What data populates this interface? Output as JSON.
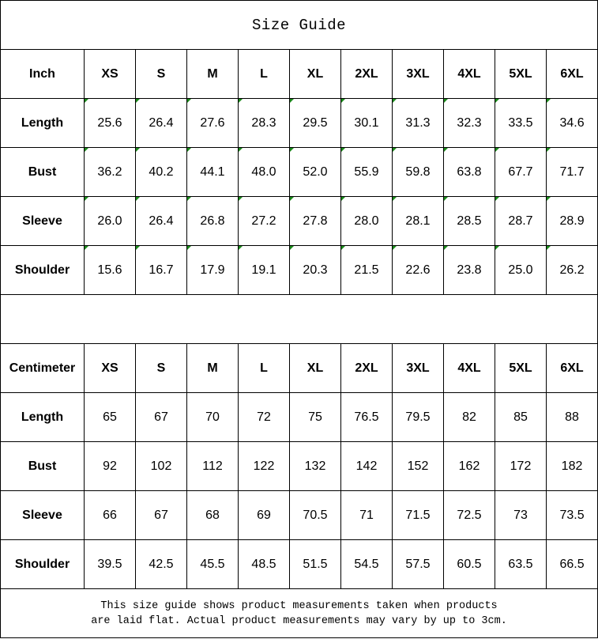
{
  "title": "Size Guide",
  "sizes": [
    "XS",
    "S",
    "M",
    "L",
    "XL",
    "2XL",
    "3XL",
    "4XL",
    "5XL",
    "6XL"
  ],
  "marker_color": "#1a8a1a",
  "inch": {
    "unit_label": "Inch",
    "rows": [
      {
        "label": "Length",
        "values": [
          "25.6",
          "26.4",
          "27.6",
          "28.3",
          "29.5",
          "30.1",
          "31.3",
          "32.3",
          "33.5",
          "34.6"
        ]
      },
      {
        "label": "Bust",
        "values": [
          "36.2",
          "40.2",
          "44.1",
          "48.0",
          "52.0",
          "55.9",
          "59.8",
          "63.8",
          "67.7",
          "71.7"
        ]
      },
      {
        "label": "Sleeve",
        "values": [
          "26.0",
          "26.4",
          "26.8",
          "27.2",
          "27.8",
          "28.0",
          "28.1",
          "28.5",
          "28.7",
          "28.9"
        ]
      },
      {
        "label": "Shoulder",
        "values": [
          "15.6",
          "16.7",
          "17.9",
          "19.1",
          "20.3",
          "21.5",
          "22.6",
          "23.8",
          "25.0",
          "26.2"
        ]
      }
    ]
  },
  "centimeter": {
    "unit_label": "Centimeter",
    "rows": [
      {
        "label": "Length",
        "values": [
          "65",
          "67",
          "70",
          "72",
          "75",
          "76.5",
          "79.5",
          "82",
          "85",
          "88"
        ]
      },
      {
        "label": "Bust",
        "values": [
          "92",
          "102",
          "112",
          "122",
          "132",
          "142",
          "152",
          "162",
          "172",
          "182"
        ]
      },
      {
        "label": "Sleeve",
        "values": [
          "66",
          "67",
          "68",
          "69",
          "70.5",
          "71",
          "71.5",
          "72.5",
          "73",
          "73.5"
        ]
      },
      {
        "label": "Shoulder",
        "values": [
          "39.5",
          "42.5",
          "45.5",
          "48.5",
          "51.5",
          "54.5",
          "57.5",
          "60.5",
          "63.5",
          "66.5"
        ]
      }
    ]
  },
  "footer": {
    "line1": "This size guide shows product measurements taken when products",
    "line2": "are laid flat. Actual product measurements may vary by up to 3cm."
  }
}
